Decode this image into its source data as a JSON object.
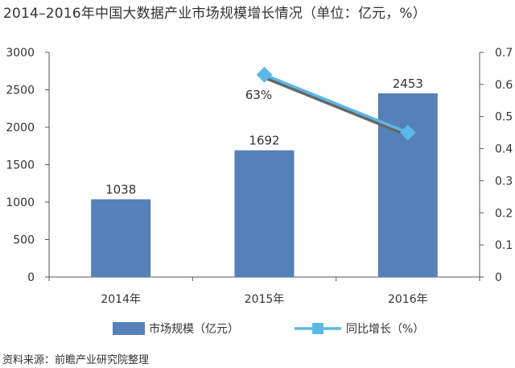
{
  "chart_data": {
    "type": "bar",
    "title": "2014–2016年中国大数据产业市场规模增长情况（单位：亿元，%）",
    "categories": [
      "2014年",
      "2015年",
      "2016年"
    ],
    "series": [
      {
        "name": "市场规模（亿元）",
        "type": "bar",
        "axis": "left",
        "color": "#5580b8",
        "values": [
          1038,
          1692,
          2453
        ],
        "labels": [
          "1038",
          "1692",
          "2453"
        ]
      },
      {
        "name": "同比增长（%）",
        "type": "line",
        "axis": "right",
        "color": "#5bb8e6",
        "values": [
          null,
          0.63,
          0.45
        ],
        "labels": [
          null,
          "63%",
          null
        ]
      }
    ],
    "y_left": {
      "min": 0,
      "max": 3000,
      "ticks": [
        "0",
        "500",
        "1000",
        "1500",
        "2000",
        "2500",
        "3000"
      ]
    },
    "y_right": {
      "min": 0,
      "max": 0.7,
      "ticks": [
        "0",
        "0.1",
        "0.2",
        "0.3",
        "0.4",
        "0.5",
        "0.6",
        "0.7"
      ]
    },
    "legend_position": "bottom",
    "grid": false
  },
  "source": "资料来源：前瞻产业研究院整理"
}
